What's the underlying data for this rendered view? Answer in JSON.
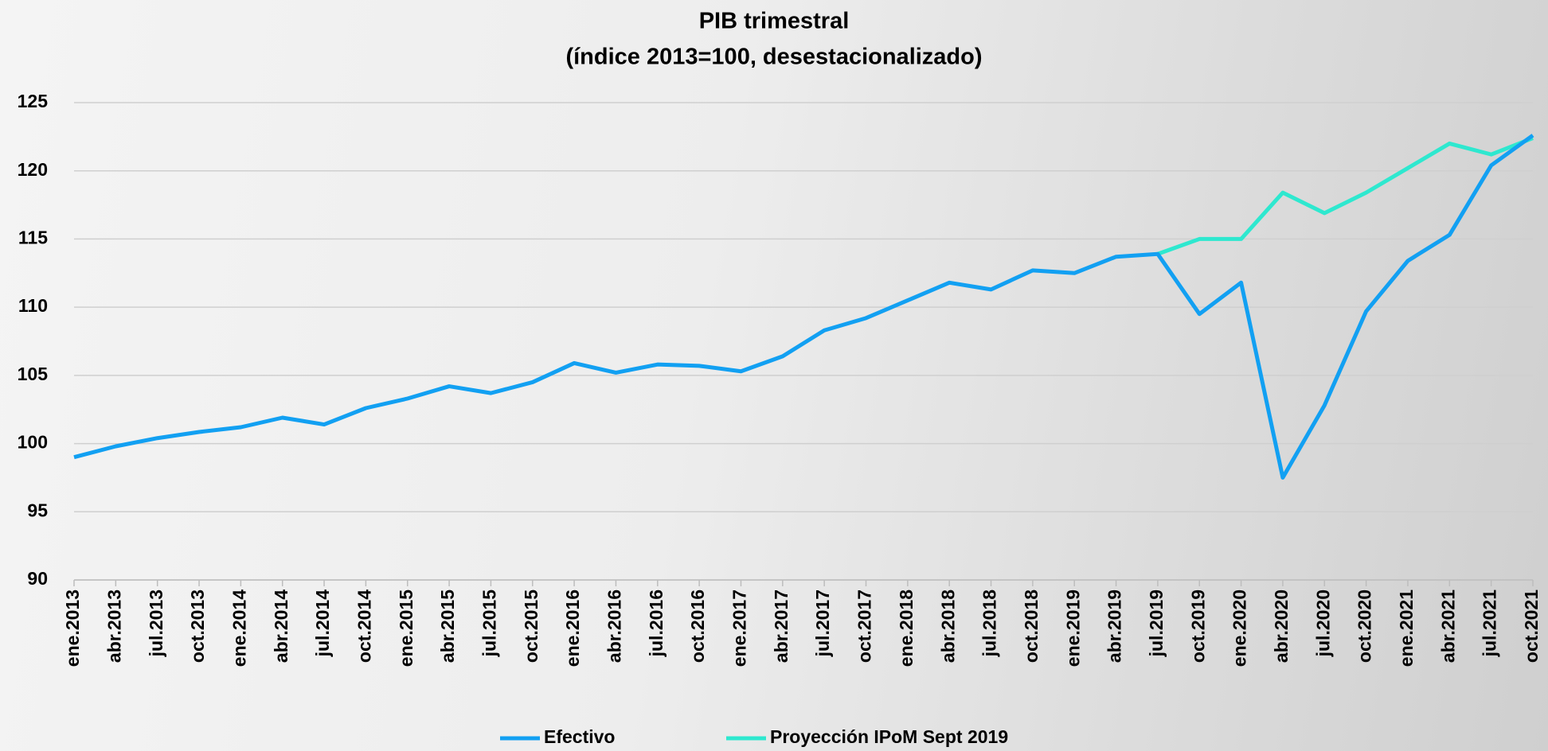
{
  "chart_data": {
    "type": "line",
    "title": "PIB trimestral",
    "subtitle": "(índice 2013=100, desestacionalizado)",
    "categories": [
      "ene.2013",
      "abr.2013",
      "jul.2013",
      "oct.2013",
      "ene.2014",
      "abr.2014",
      "jul.2014",
      "oct.2014",
      "ene.2015",
      "abr.2015",
      "jul.2015",
      "oct.2015",
      "ene.2016",
      "abr.2016",
      "jul.2016",
      "oct.2016",
      "ene.2017",
      "abr.2017",
      "jul.2017",
      "oct.2017",
      "ene.2018",
      "abr.2018",
      "jul.2018",
      "oct.2018",
      "ene.2019",
      "abr.2019",
      "jul.2019",
      "oct.2019",
      "ene.2020",
      "abr.2020",
      "jul.2020",
      "oct.2020",
      "ene.2021",
      "abr.2021",
      "jul.2021",
      "oct.2021"
    ],
    "series": [
      {
        "name": "Efectivo",
        "color": "#12a0f2",
        "values": [
          99.0,
          99.8,
          100.4,
          100.85,
          101.2,
          101.9,
          101.4,
          102.6,
          103.3,
          104.2,
          103.7,
          104.5,
          105.9,
          105.2,
          105.8,
          105.7,
          105.3,
          106.4,
          108.3,
          109.2,
          110.5,
          111.8,
          111.3,
          112.7,
          112.5,
          113.7,
          113.9,
          109.5,
          111.8,
          97.5,
          102.8,
          109.7,
          113.4,
          115.3,
          120.4,
          122.6
        ]
      },
      {
        "name": "Proyección IPoM Sept 2019",
        "color": "#2ee8cf",
        "values": [
          null,
          null,
          null,
          null,
          null,
          null,
          null,
          null,
          null,
          null,
          null,
          null,
          null,
          null,
          null,
          null,
          null,
          null,
          null,
          null,
          null,
          null,
          null,
          null,
          null,
          null,
          113.9,
          115.0,
          115.0,
          118.4,
          116.9,
          118.4,
          120.2,
          122.0,
          121.2,
          122.4
        ]
      }
    ],
    "ylim": [
      90,
      125
    ],
    "yticks": [
      90,
      95,
      100,
      105,
      110,
      115,
      120,
      125
    ],
    "grid": true,
    "legend": "bottom"
  }
}
